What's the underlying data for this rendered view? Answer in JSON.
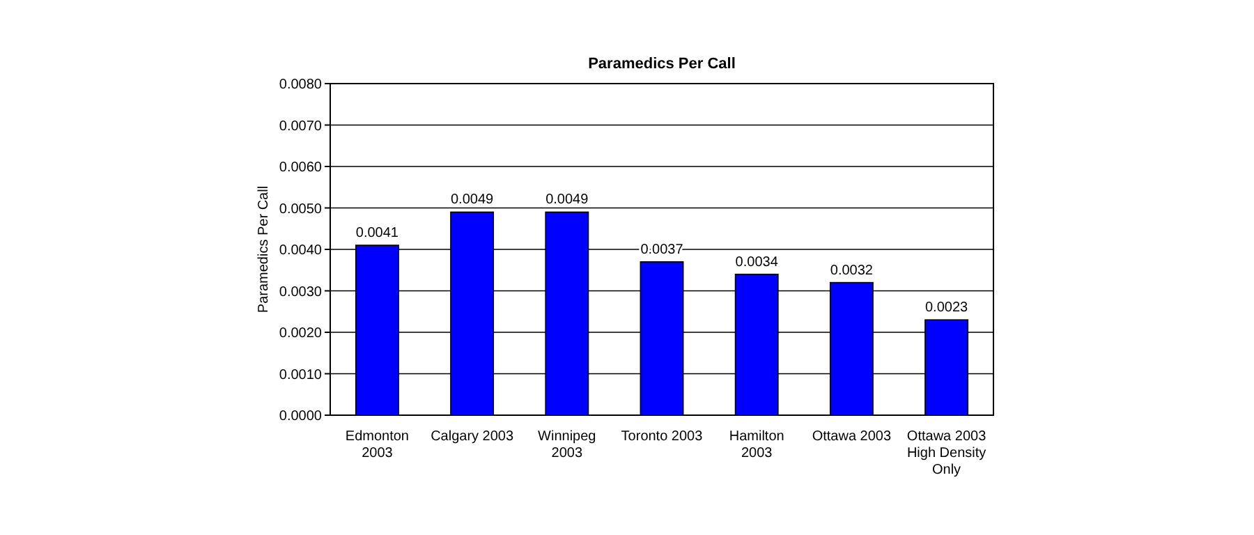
{
  "chart_data": {
    "type": "bar",
    "title": "Paramedics Per Call",
    "ylabel": "Paramedics Per Call",
    "categories": [
      "Edmonton 2003",
      "Calgary 2003",
      "Winnipeg 2003",
      "Toronto 2003",
      "Hamilton 2003",
      "Ottawa 2003",
      "Ottawa 2003 High Density Only"
    ],
    "values": [
      0.0041,
      0.0049,
      0.0049,
      0.0037,
      0.0034,
      0.0032,
      0.0023
    ],
    "color": "#0000ff",
    "data_labels": true,
    "grid": "y",
    "ylim": [
      0,
      0.008
    ],
    "yticks": [
      {
        "value": 0,
        "label": "0.0000"
      },
      {
        "value": 0.001,
        "label": "0.0010"
      },
      {
        "value": 0.002,
        "label": "0.0020"
      },
      {
        "value": 0.003,
        "label": "0.0030"
      },
      {
        "value": 0.004,
        "label": "0.0040"
      },
      {
        "value": 0.005,
        "label": "0.0050"
      },
      {
        "value": 0.006,
        "label": "0.0060"
      },
      {
        "value": 0.007,
        "label": "0.0070"
      },
      {
        "value": 0.008,
        "label": "0.0080"
      }
    ]
  }
}
